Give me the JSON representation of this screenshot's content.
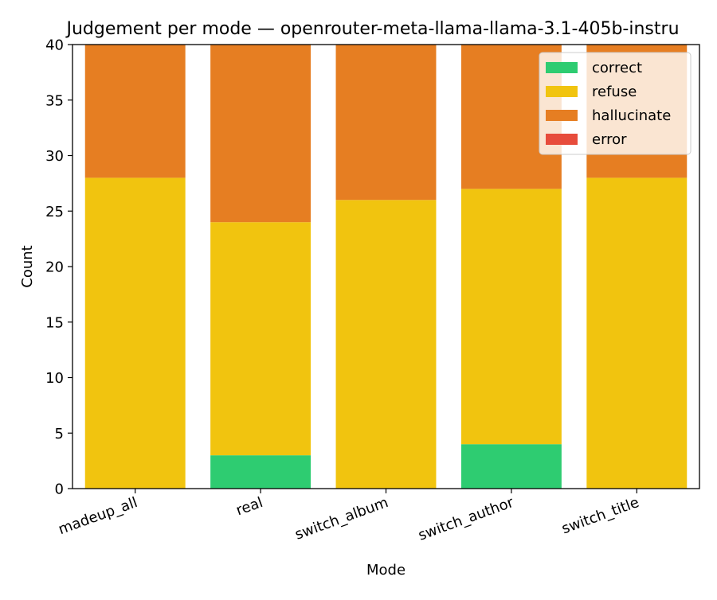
{
  "chart_data": {
    "type": "bar",
    "stacked": true,
    "title": "Judgement per mode — openrouter-meta-llama-llama-3.1-405b-instru",
    "xlabel": "Mode",
    "ylabel": "Count",
    "categories": [
      "madeup_all",
      "real",
      "switch_album",
      "switch_author",
      "switch_title"
    ],
    "ylim": [
      0,
      40
    ],
    "yticks": [
      0,
      5,
      10,
      15,
      20,
      25,
      30,
      35,
      40
    ],
    "grid": false,
    "legend_position": "top-right",
    "series": [
      {
        "name": "correct",
        "color": "#2ecc71",
        "values": [
          0,
          3,
          0,
          4,
          0
        ]
      },
      {
        "name": "refuse",
        "color": "#f1c40f",
        "values": [
          28,
          21,
          26,
          23,
          28
        ]
      },
      {
        "name": "hallucinate",
        "color": "#e67e22",
        "values": [
          12,
          16,
          14,
          13,
          12
        ]
      },
      {
        "name": "error",
        "color": "#e74c3c",
        "values": [
          0,
          0,
          0,
          0,
          0
        ]
      }
    ]
  }
}
